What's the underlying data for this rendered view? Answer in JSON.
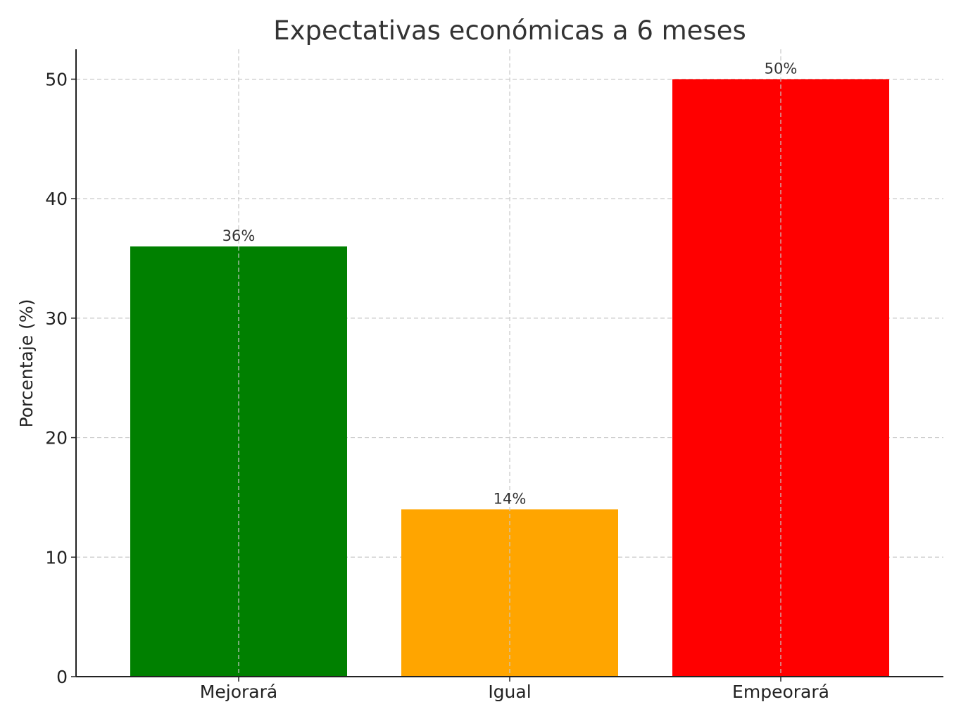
{
  "chart_data": {
    "type": "bar",
    "title": "Expectativas económicas a 6 meses",
    "xlabel": "",
    "ylabel": "Porcentaje (%)",
    "categories": [
      "Mejorará",
      "Igual",
      "Empeorará"
    ],
    "values": [
      36,
      14,
      50
    ],
    "data_labels": [
      "36%",
      "14%",
      "50%"
    ],
    "colors": [
      "#008000",
      "#FFA500",
      "#FF0000"
    ],
    "ylim": [
      0,
      52.5
    ],
    "yticks": [
      0,
      10,
      20,
      30,
      40,
      50
    ],
    "grid": true,
    "legend": "none"
  }
}
